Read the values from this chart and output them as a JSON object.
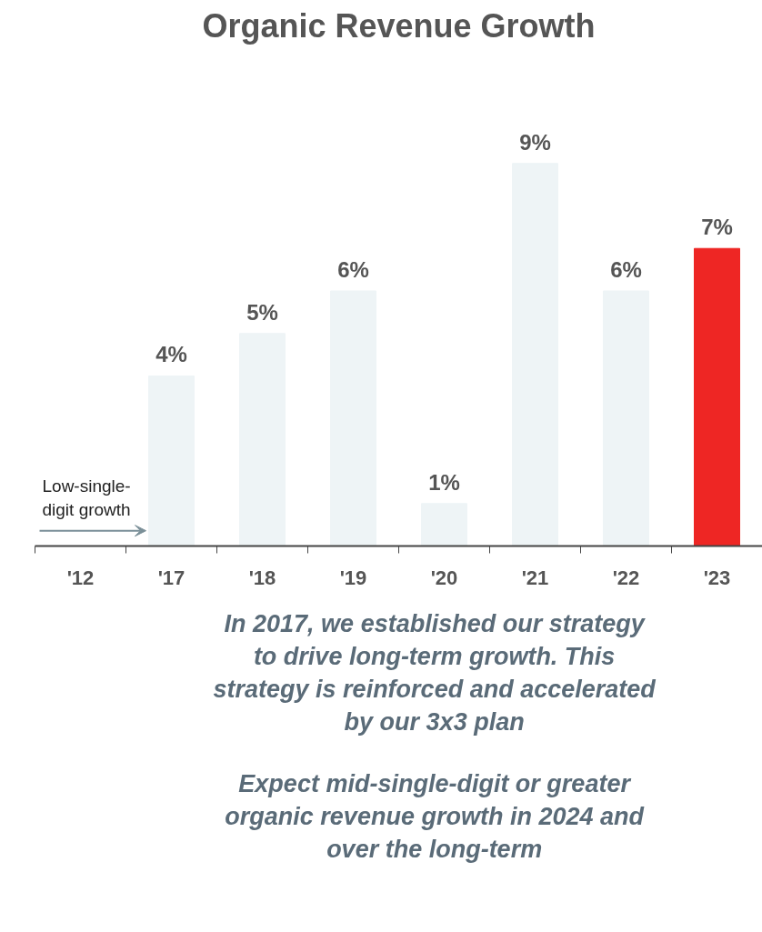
{
  "chart_data": {
    "type": "bar",
    "title": "Organic Revenue Growth",
    "categories": [
      "'12",
      "'17",
      "'18",
      "'19",
      "'20",
      "'21",
      "'22",
      "'23"
    ],
    "values": [
      null,
      4,
      5,
      6,
      1,
      9,
      6,
      7
    ],
    "value_labels": [
      null,
      "4%",
      "5%",
      "6%",
      "1%",
      "9%",
      "6%",
      "7%"
    ],
    "colors": [
      "#eef4f6",
      "#eef4f6",
      "#eef4f6",
      "#eef4f6",
      "#eef4f6",
      "#eef4f6",
      "#eef4f6",
      "#ee2624"
    ],
    "grid": false,
    "annotations": [
      "Low-single-\ndigit growth",
      "In 2017, we established our strategy\nto drive long-term growth. This\nstrategy is reinforced and accelerated\nby our 3x3 plan",
      "Expect mid-single-digit or greater\norganic revenue growth in 2024 and\nover the long-term"
    ]
  }
}
